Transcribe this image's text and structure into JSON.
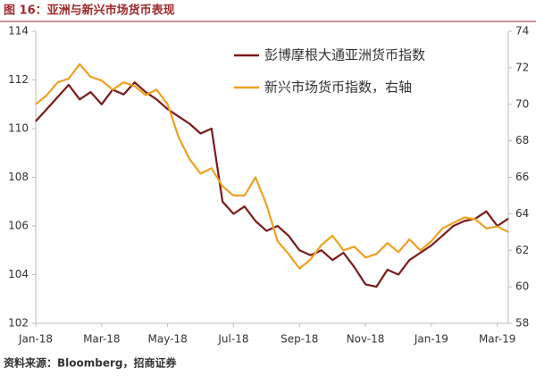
{
  "title": "图 16：亚洲与新兴市场货币表现",
  "source": "资料来源：Bloomberg，招商证券",
  "chart_data": {
    "type": "line",
    "categories": [
      "Jan-18",
      null,
      null,
      null,
      null,
      null,
      "Mar-18",
      null,
      null,
      null,
      null,
      null,
      "May-18",
      null,
      null,
      null,
      null,
      null,
      "Jul-18",
      null,
      null,
      null,
      null,
      null,
      "Sep-18",
      null,
      null,
      null,
      null,
      null,
      "Nov-18",
      null,
      null,
      null,
      null,
      null,
      "Jan-19",
      null,
      null,
      null,
      null,
      null,
      "Mar-19",
      null
    ],
    "series": [
      {
        "name": "彭博摩根大通亚洲货币指数",
        "color": "#7b1a1a",
        "values": [
          110.3,
          110.8,
          111.3,
          111.8,
          111.2,
          111.5,
          111.0,
          111.6,
          111.4,
          111.9,
          111.5,
          111.2,
          110.8,
          110.5,
          110.2,
          109.8,
          110.0,
          107.0,
          106.5,
          106.8,
          106.2,
          105.8,
          106.0,
          105.6,
          105.0,
          104.8,
          105.0,
          104.6,
          104.9,
          104.3,
          103.6,
          103.5,
          104.2,
          104.0,
          104.6,
          104.9,
          105.2,
          105.6,
          106.0,
          106.2,
          106.3,
          106.6,
          106.0,
          106.3
        ]
      },
      {
        "name": "新兴市场货币指数，右轴",
        "color": "#f0a020",
        "axis": "y2",
        "values": [
          70.0,
          70.5,
          71.2,
          71.4,
          72.2,
          71.5,
          71.3,
          70.8,
          71.2,
          71.0,
          70.5,
          70.8,
          70.0,
          68.2,
          67.0,
          66.2,
          66.5,
          65.5,
          65.0,
          65.0,
          66.0,
          64.5,
          62.5,
          61.8,
          61.0,
          61.5,
          62.3,
          62.8,
          62.0,
          62.2,
          61.6,
          61.8,
          62.4,
          61.9,
          62.6,
          62.0,
          62.5,
          63.2,
          63.5,
          63.8,
          63.7,
          63.2,
          63.3,
          63.0
        ]
      }
    ],
    "ylim": [
      102,
      114
    ],
    "yticks": [
      102,
      104,
      106,
      108,
      110,
      112,
      114
    ],
    "y2lim": [
      58,
      74
    ],
    "y2ticks": [
      58,
      60,
      62,
      64,
      66,
      68,
      70,
      72,
      74
    ],
    "legend": "upper right",
    "grid": false
  }
}
